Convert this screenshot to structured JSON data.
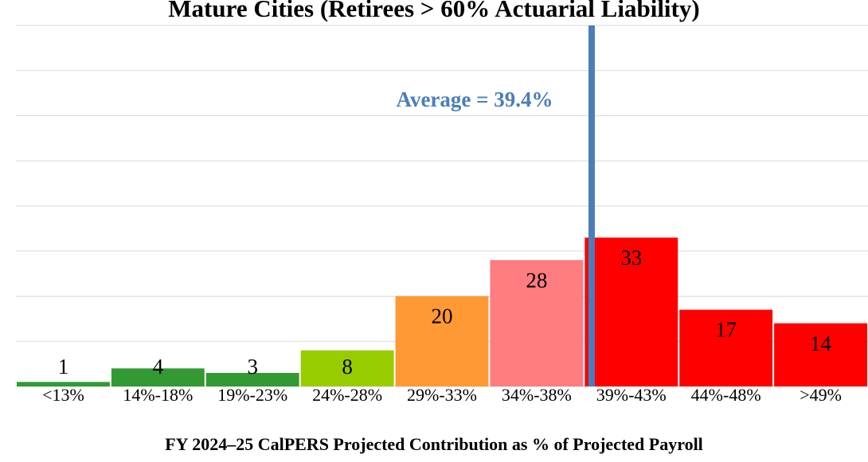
{
  "chart_data": {
    "type": "bar",
    "title": "Mature Cities (Retirees > 60% Actuarial Liability)",
    "x_label": "FY 2024–25 CalPERS Projected Contribution as % of Projected Payroll",
    "annotation": "Average = 39.4%",
    "categories": [
      "<13%",
      "14%-18%",
      "19%-23%",
      "24%-28%",
      "29%-33%",
      "34%-38%",
      "39%-43%",
      "44%-48%",
      ">49%"
    ],
    "values": [
      1,
      4,
      3,
      8,
      20,
      28,
      33,
      17,
      14
    ],
    "colors": [
      "#339933",
      "#339933",
      "#339933",
      "#99cc00",
      "#ff9933",
      "#ff7c80",
      "#ff0000",
      "#ff0000",
      "#ff0000"
    ],
    "ylim": [
      0,
      80
    ],
    "yticks": [
      0,
      10,
      20,
      30,
      40,
      50,
      60,
      70,
      80
    ],
    "grid": true
  }
}
